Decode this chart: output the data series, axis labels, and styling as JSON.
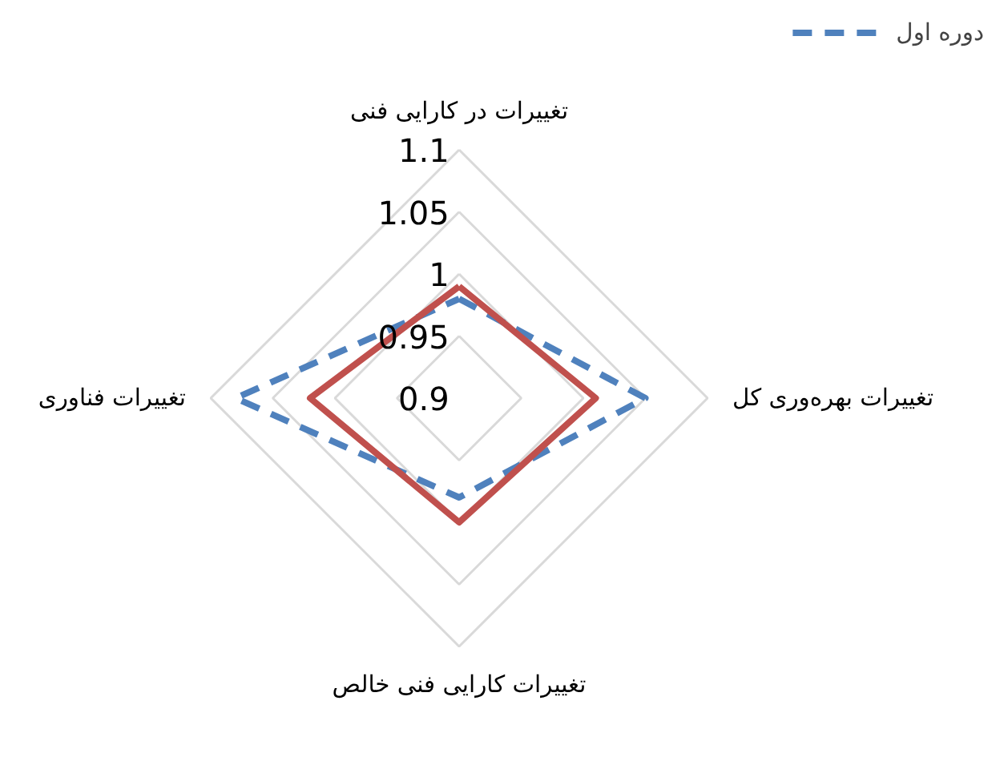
{
  "chart_data": {
    "type": "radar",
    "categories": [
      "تغییرات در کارایی فنی",
      "تغییرات بهره‌وری کل",
      "تغییرات کارایی فنی خالص",
      "تغییرات فناوری"
    ],
    "series": [
      {
        "name": "دوره اول",
        "color": "#4f81bd",
        "line_style": "dashed",
        "values": [
          0.98,
          1.05,
          0.98,
          1.08
        ]
      },
      {
        "color": "#c0504d",
        "line_style": "solid",
        "values": [
          0.99,
          1.01,
          1.0,
          1.02
        ]
      }
    ],
    "ylim": [
      0.9,
      1.1
    ],
    "yticks": [
      0.9,
      0.95,
      1,
      1.05,
      1.1
    ],
    "grid": true,
    "legend": "top right"
  }
}
